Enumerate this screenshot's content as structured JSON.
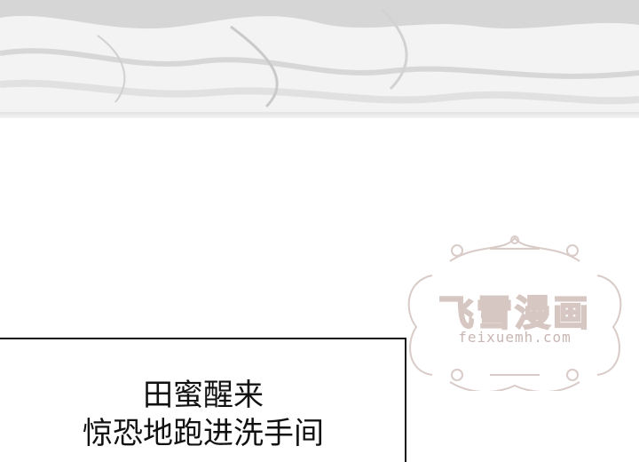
{
  "caption": {
    "line1": "田蜜醒来",
    "line2": "惊恐地跑进洗手间"
  },
  "watermark": {
    "title": "飞雪漫画",
    "url": "feixuemh.com"
  }
}
